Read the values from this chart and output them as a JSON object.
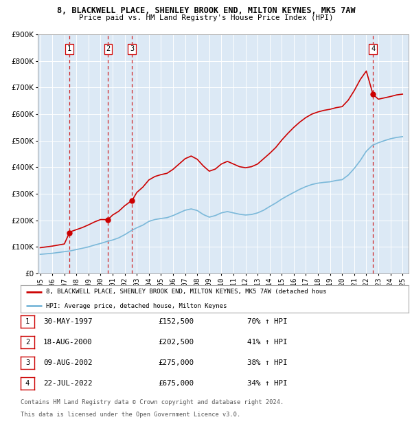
{
  "title1": "8, BLACKWELL PLACE, SHENLEY BROOK END, MILTON KEYNES, MK5 7AW",
  "title2": "Price paid vs. HM Land Registry's House Price Index (HPI)",
  "plot_bg_color": "#dce9f5",
  "ylim": [
    0,
    900000
  ],
  "yticks": [
    0,
    100000,
    200000,
    300000,
    400000,
    500000,
    600000,
    700000,
    800000,
    900000
  ],
  "purchases": [
    {
      "label": 1,
      "date_str": "30-MAY-1997",
      "date_x": 1997.41,
      "price": 152500,
      "pct": "70%",
      "dir": "↑"
    },
    {
      "label": 2,
      "date_str": "18-AUG-2000",
      "date_x": 2000.62,
      "price": 202500,
      "pct": "41%",
      "dir": "↑"
    },
    {
      "label": 3,
      "date_str": "09-AUG-2002",
      "date_x": 2002.6,
      "price": 275000,
      "pct": "38%",
      "dir": "↑"
    },
    {
      "label": 4,
      "date_str": "22-JUL-2022",
      "date_x": 2022.55,
      "price": 675000,
      "pct": "34%",
      "dir": "↑"
    }
  ],
  "hpi_line_color": "#7ab8d9",
  "price_line_color": "#cc0000",
  "purchase_dot_color": "#cc0000",
  "vline_color": "#cc0000",
  "legend1_text": "8, BLACKWELL PLACE, SHENLEY BROOK END, MILTON KEYNES, MK5 7AW (detached hous",
  "legend2_text": "HPI: Average price, detached house, Milton Keynes",
  "footnote1": "Contains HM Land Registry data © Crown copyright and database right 2024.",
  "footnote2": "This data is licensed under the Open Government Licence v3.0.",
  "hpi_data": [
    [
      1995.0,
      72000
    ],
    [
      1995.5,
      74000
    ],
    [
      1996.0,
      76000
    ],
    [
      1996.5,
      79000
    ],
    [
      1997.0,
      82000
    ],
    [
      1997.5,
      85000
    ],
    [
      1998.0,
      90000
    ],
    [
      1998.5,
      95000
    ],
    [
      1999.0,
      100000
    ],
    [
      1999.5,
      107000
    ],
    [
      2000.0,
      113000
    ],
    [
      2000.5,
      120000
    ],
    [
      2001.0,
      126000
    ],
    [
      2001.5,
      134000
    ],
    [
      2002.0,
      146000
    ],
    [
      2002.5,
      160000
    ],
    [
      2003.0,
      172000
    ],
    [
      2003.5,
      182000
    ],
    [
      2004.0,
      196000
    ],
    [
      2004.5,
      203000
    ],
    [
      2005.0,
      207000
    ],
    [
      2005.5,
      210000
    ],
    [
      2006.0,
      218000
    ],
    [
      2006.5,
      228000
    ],
    [
      2007.0,
      238000
    ],
    [
      2007.5,
      243000
    ],
    [
      2008.0,
      237000
    ],
    [
      2008.5,
      222000
    ],
    [
      2009.0,
      212000
    ],
    [
      2009.5,
      218000
    ],
    [
      2010.0,
      228000
    ],
    [
      2010.5,
      233000
    ],
    [
      2011.0,
      228000
    ],
    [
      2011.5,
      223000
    ],
    [
      2012.0,
      220000
    ],
    [
      2012.5,
      222000
    ],
    [
      2013.0,
      228000
    ],
    [
      2013.5,
      238000
    ],
    [
      2014.0,
      252000
    ],
    [
      2014.5,
      265000
    ],
    [
      2015.0,
      280000
    ],
    [
      2015.5,
      293000
    ],
    [
      2016.0,
      305000
    ],
    [
      2016.5,
      317000
    ],
    [
      2017.0,
      327000
    ],
    [
      2017.5,
      335000
    ],
    [
      2018.0,
      340000
    ],
    [
      2018.5,
      343000
    ],
    [
      2019.0,
      345000
    ],
    [
      2019.5,
      350000
    ],
    [
      2020.0,
      353000
    ],
    [
      2020.5,
      370000
    ],
    [
      2021.0,
      395000
    ],
    [
      2021.5,
      425000
    ],
    [
      2022.0,
      460000
    ],
    [
      2022.5,
      482000
    ],
    [
      2023.0,
      492000
    ],
    [
      2023.5,
      500000
    ],
    [
      2024.0,
      507000
    ],
    [
      2024.5,
      512000
    ],
    [
      2025.0,
      515000
    ]
  ],
  "price_hpi_data": [
    [
      1995.0,
      97000
    ],
    [
      1995.5,
      100000
    ],
    [
      1996.0,
      103000
    ],
    [
      1996.5,
      107000
    ],
    [
      1997.0,
      111000
    ],
    [
      1997.41,
      152500
    ],
    [
      1997.5,
      157000
    ],
    [
      1998.0,
      165000
    ],
    [
      1998.5,
      173000
    ],
    [
      1999.0,
      183000
    ],
    [
      1999.5,
      194000
    ],
    [
      2000.0,
      203000
    ],
    [
      2000.62,
      202500
    ],
    [
      2000.7,
      207000
    ],
    [
      2001.0,
      220000
    ],
    [
      2001.5,
      234000
    ],
    [
      2002.0,
      255000
    ],
    [
      2002.6,
      275000
    ],
    [
      2002.7,
      282000
    ],
    [
      2003.0,
      305000
    ],
    [
      2003.5,
      325000
    ],
    [
      2004.0,
      352000
    ],
    [
      2004.5,
      365000
    ],
    [
      2005.0,
      372000
    ],
    [
      2005.5,
      377000
    ],
    [
      2006.0,
      392000
    ],
    [
      2006.5,
      412000
    ],
    [
      2007.0,
      432000
    ],
    [
      2007.5,
      442000
    ],
    [
      2008.0,
      430000
    ],
    [
      2008.5,
      405000
    ],
    [
      2009.0,
      385000
    ],
    [
      2009.5,
      393000
    ],
    [
      2010.0,
      412000
    ],
    [
      2010.5,
      422000
    ],
    [
      2011.0,
      412000
    ],
    [
      2011.5,
      402000
    ],
    [
      2012.0,
      398000
    ],
    [
      2012.5,
      402000
    ],
    [
      2013.0,
      412000
    ],
    [
      2013.5,
      432000
    ],
    [
      2014.0,
      452000
    ],
    [
      2014.5,
      474000
    ],
    [
      2015.0,
      502000
    ],
    [
      2015.5,
      527000
    ],
    [
      2016.0,
      550000
    ],
    [
      2016.5,
      570000
    ],
    [
      2017.0,
      587000
    ],
    [
      2017.5,
      600000
    ],
    [
      2018.0,
      608000
    ],
    [
      2018.5,
      614000
    ],
    [
      2019.0,
      618000
    ],
    [
      2019.5,
      624000
    ],
    [
      2020.0,
      628000
    ],
    [
      2020.5,
      652000
    ],
    [
      2021.0,
      688000
    ],
    [
      2021.5,
      730000
    ],
    [
      2022.0,
      762000
    ],
    [
      2022.55,
      675000
    ],
    [
      2022.7,
      668000
    ],
    [
      2023.0,
      656000
    ],
    [
      2023.5,
      661000
    ],
    [
      2024.0,
      666000
    ],
    [
      2024.5,
      672000
    ],
    [
      2025.0,
      675000
    ]
  ],
  "x_tick_years": [
    1995,
    1996,
    1997,
    1998,
    1999,
    2000,
    2001,
    2002,
    2003,
    2004,
    2005,
    2006,
    2007,
    2008,
    2009,
    2010,
    2011,
    2012,
    2013,
    2014,
    2015,
    2016,
    2017,
    2018,
    2019,
    2020,
    2021,
    2022,
    2023,
    2024,
    2025
  ],
  "xlim": [
    1994.8,
    2025.5
  ]
}
